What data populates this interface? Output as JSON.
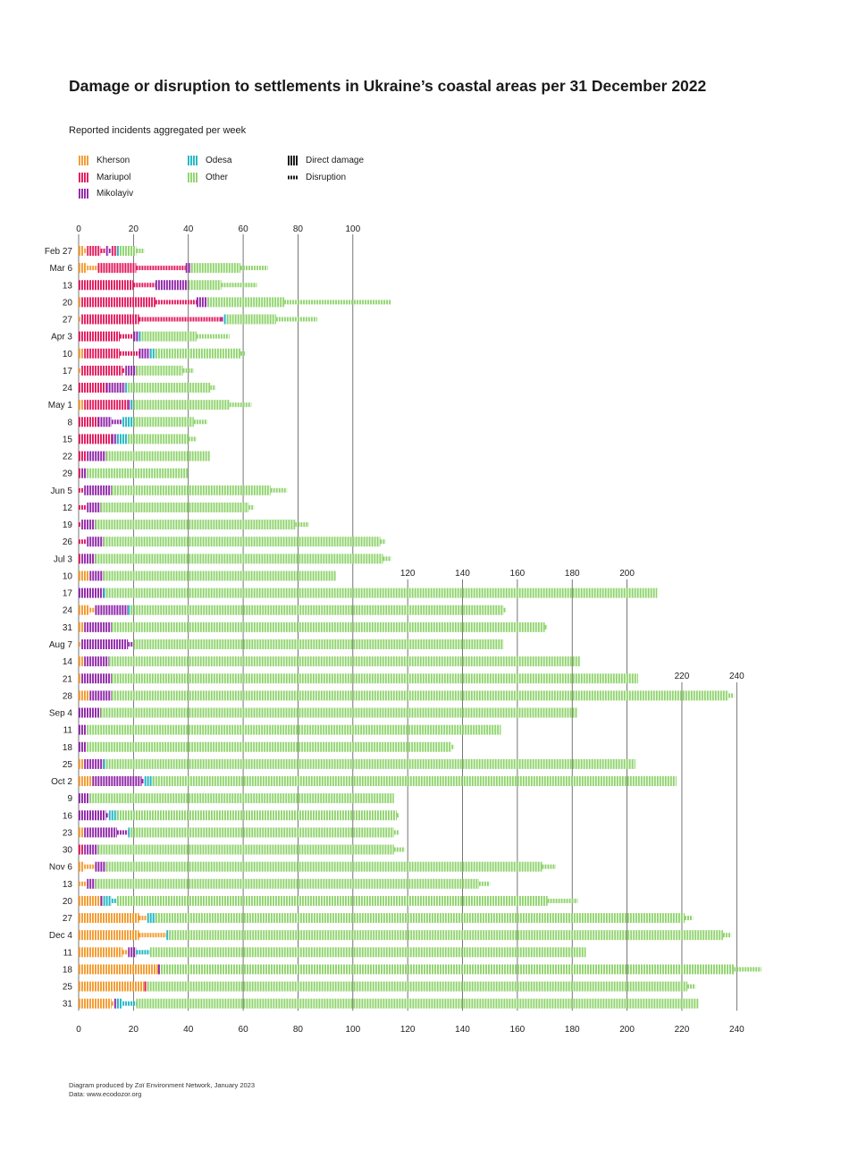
{
  "title": "Damage or disruption to settlements in Ukraine’s coastal areas per 31 December 2022",
  "subtitle": "Reported incidents aggregated per week",
  "legend": {
    "kherson": "Kherson",
    "mariupol": "Mariupol",
    "mikolayiv": "Mikolayiv",
    "odesa": "Odesa",
    "other": "Other",
    "direct": "Direct damage",
    "disruption": "Disruption"
  },
  "colors": {
    "kherson": "#f39a2d",
    "mariupol": "#e2185b",
    "mikolayiv": "#8e24a8",
    "odesa": "#1eb6c1",
    "other": "#8ed36b",
    "gridline": "#555555"
  },
  "footer": {
    "line1": "Diagram produced by Zoï Environment Network, January 2023",
    "line2": "Data: www.ecodozor.org"
  },
  "chart_data": {
    "type": "bar",
    "orientation": "horizontal",
    "stacked": true,
    "bar_style": "hatched vertical stripes; tall stripes = direct damage, short stripes = disruption",
    "xlim": [
      0,
      250
    ],
    "top_ticks": [
      0,
      20,
      40,
      60,
      80,
      100
    ],
    "mid_ticks": [
      120,
      140,
      160,
      180,
      200
    ],
    "late_ticks": [
      220,
      240
    ],
    "bottom_ticks": [
      0,
      20,
      40,
      60,
      80,
      100,
      120,
      140,
      160,
      180,
      200,
      220,
      240
    ],
    "categories": [
      "Feb 27",
      "Mar 6",
      "13",
      "20",
      "27",
      "Apr 3",
      "10",
      "17",
      "24",
      "May 1",
      "8",
      "15",
      "22",
      "29",
      "Jun 5",
      "12",
      "19",
      "26",
      "Jul 3",
      "10",
      "17",
      "24",
      "31",
      "Aug 7",
      "14",
      "21",
      "28",
      "Sep 4",
      "11",
      "18",
      "25",
      "Oct 2",
      "9",
      "16",
      "23",
      "30",
      "Nov 6",
      "13",
      "20",
      "27",
      "Dec 4",
      "11",
      "18",
      "25",
      "31"
    ],
    "segment_keys": [
      "city",
      "type",
      "value"
    ],
    "rows": [
      [
        [
          "kherson",
          "d",
          2
        ],
        [
          "kherson",
          "s",
          1
        ],
        [
          "mariupol",
          "d",
          5
        ],
        [
          "mariupol",
          "s",
          2
        ],
        [
          "mikolayiv",
          "d",
          1
        ],
        [
          "mikolayiv",
          "s",
          1
        ],
        [
          "mariupol",
          "d",
          2
        ],
        [
          "odesa",
          "d",
          1
        ],
        [
          "other",
          "d",
          6
        ],
        [
          "other",
          "s",
          3
        ]
      ],
      [
        [
          "kherson",
          "d",
          3
        ],
        [
          "kherson",
          "s",
          4
        ],
        [
          "mariupol",
          "d",
          14
        ],
        [
          "mariupol",
          "s",
          18
        ],
        [
          "mikolayiv",
          "d",
          2
        ],
        [
          "other",
          "d",
          18
        ],
        [
          "other",
          "s",
          10
        ]
      ],
      [
        [
          "mariupol",
          "d",
          20
        ],
        [
          "mariupol",
          "s",
          8
        ],
        [
          "mikolayiv",
          "d",
          12
        ],
        [
          "other",
          "d",
          12
        ],
        [
          "other",
          "s",
          13
        ]
      ],
      [
        [
          "kherson",
          "d",
          1
        ],
        [
          "mariupol",
          "d",
          27
        ],
        [
          "mariupol",
          "s",
          15
        ],
        [
          "mikolayiv",
          "d",
          4
        ],
        [
          "other",
          "d",
          28
        ],
        [
          "other",
          "s",
          39
        ]
      ],
      [
        [
          "kherson",
          "s",
          1
        ],
        [
          "mariupol",
          "d",
          21
        ],
        [
          "mariupol",
          "s",
          30
        ],
        [
          "mikolayiv",
          "s",
          1
        ],
        [
          "odesa",
          "d",
          1
        ],
        [
          "other",
          "d",
          18
        ],
        [
          "other",
          "s",
          15
        ]
      ],
      [
        [
          "mariupol",
          "d",
          15
        ],
        [
          "mariupol",
          "s",
          5
        ],
        [
          "mikolayiv",
          "d",
          2
        ],
        [
          "odesa",
          "d",
          1
        ],
        [
          "other",
          "d",
          20
        ],
        [
          "other",
          "s",
          12
        ]
      ],
      [
        [
          "kherson",
          "d",
          2
        ],
        [
          "mariupol",
          "d",
          13
        ],
        [
          "mariupol",
          "s",
          7
        ],
        [
          "mikolayiv",
          "d",
          4
        ],
        [
          "odesa",
          "d",
          2
        ],
        [
          "other",
          "d",
          31
        ],
        [
          "other",
          "s",
          2
        ]
      ],
      [
        [
          "kherson",
          "s",
          1
        ],
        [
          "mariupol",
          "d",
          15
        ],
        [
          "mariupol",
          "s",
          1
        ],
        [
          "mikolayiv",
          "d",
          4
        ],
        [
          "other",
          "d",
          17
        ],
        [
          "other",
          "s",
          4
        ]
      ],
      [
        [
          "mariupol",
          "d",
          10
        ],
        [
          "mikolayiv",
          "d",
          7
        ],
        [
          "odesa",
          "d",
          1
        ],
        [
          "other",
          "d",
          30
        ],
        [
          "other",
          "s",
          2
        ]
      ],
      [
        [
          "kherson",
          "d",
          2
        ],
        [
          "mariupol",
          "d",
          16
        ],
        [
          "mikolayiv",
          "d",
          1
        ],
        [
          "odesa",
          "d",
          1
        ],
        [
          "other",
          "d",
          35
        ],
        [
          "other",
          "s",
          8
        ]
      ],
      [
        [
          "mariupol",
          "d",
          7
        ],
        [
          "mikolayiv",
          "d",
          5
        ],
        [
          "mikolayiv",
          "s",
          4
        ],
        [
          "odesa",
          "d",
          4
        ],
        [
          "other",
          "d",
          22
        ],
        [
          "other",
          "s",
          5
        ]
      ],
      [
        [
          "mariupol",
          "d",
          12
        ],
        [
          "mikolayiv",
          "d",
          2
        ],
        [
          "odesa",
          "d",
          4
        ],
        [
          "other",
          "d",
          22
        ],
        [
          "other",
          "s",
          3
        ]
      ],
      [
        [
          "mariupol",
          "d",
          3
        ],
        [
          "mikolayiv",
          "d",
          7
        ],
        [
          "other",
          "d",
          38
        ]
      ],
      [
        [
          "mariupol",
          "d",
          1
        ],
        [
          "mikolayiv",
          "d",
          2
        ],
        [
          "other",
          "d",
          37
        ]
      ],
      [
        [
          "mariupol",
          "s",
          2
        ],
        [
          "mikolayiv",
          "d",
          10
        ],
        [
          "other",
          "d",
          58
        ],
        [
          "other",
          "s",
          6
        ]
      ],
      [
        [
          "mariupol",
          "s",
          3
        ],
        [
          "mikolayiv",
          "d",
          5
        ],
        [
          "other",
          "d",
          54
        ],
        [
          "other",
          "s",
          2
        ]
      ],
      [
        [
          "mariupol",
          "s",
          1
        ],
        [
          "mikolayiv",
          "d",
          5
        ],
        [
          "other",
          "d",
          73
        ],
        [
          "other",
          "s",
          5
        ]
      ],
      [
        [
          "mariupol",
          "s",
          3
        ],
        [
          "mikolayiv",
          "d",
          6
        ],
        [
          "other",
          "d",
          101
        ],
        [
          "other",
          "s",
          2
        ]
      ],
      [
        [
          "mariupol",
          "d",
          1
        ],
        [
          "mikolayiv",
          "d",
          5
        ],
        [
          "other",
          "d",
          105
        ],
        [
          "other",
          "s",
          3
        ]
      ],
      [
        [
          "kherson",
          "d",
          4
        ],
        [
          "mikolayiv",
          "d",
          5
        ],
        [
          "other",
          "d",
          85
        ]
      ],
      [
        [
          "mikolayiv",
          "d",
          9
        ],
        [
          "odesa",
          "d",
          1
        ],
        [
          "other",
          "d",
          201
        ]
      ],
      [
        [
          "kherson",
          "d",
          4
        ],
        [
          "kherson",
          "s",
          2
        ],
        [
          "mikolayiv",
          "d",
          12
        ],
        [
          "odesa",
          "d",
          1
        ],
        [
          "other",
          "d",
          136
        ],
        [
          "other",
          "s",
          1
        ]
      ],
      [
        [
          "kherson",
          "d",
          2
        ],
        [
          "mikolayiv",
          "d",
          10
        ],
        [
          "other",
          "d",
          158
        ],
        [
          "other",
          "s",
          1
        ]
      ],
      [
        [
          "kherson",
          "s",
          1
        ],
        [
          "mikolayiv",
          "d",
          17
        ],
        [
          "mikolayiv",
          "s",
          2
        ],
        [
          "other",
          "d",
          135
        ]
      ],
      [
        [
          "kherson",
          "d",
          2
        ],
        [
          "mikolayiv",
          "d",
          9
        ],
        [
          "other",
          "d",
          172
        ]
      ],
      [
        [
          "kherson",
          "d",
          1
        ],
        [
          "mikolayiv",
          "d",
          11
        ],
        [
          "other",
          "d",
          192
        ]
      ],
      [
        [
          "kherson",
          "d",
          4
        ],
        [
          "mikolayiv",
          "d",
          8
        ],
        [
          "other",
          "d",
          225
        ],
        [
          "other",
          "s",
          2
        ]
      ],
      [
        [
          "mikolayiv",
          "d",
          8
        ],
        [
          "other",
          "d",
          174
        ]
      ],
      [
        [
          "mikolayiv",
          "d",
          3
        ],
        [
          "other",
          "d",
          151
        ]
      ],
      [
        [
          "mikolayiv",
          "d",
          3
        ],
        [
          "other",
          "d",
          133
        ],
        [
          "other",
          "s",
          1
        ]
      ],
      [
        [
          "kherson",
          "d",
          2
        ],
        [
          "mikolayiv",
          "d",
          7
        ],
        [
          "odesa",
          "d",
          1
        ],
        [
          "other",
          "d",
          193
        ]
      ],
      [
        [
          "kherson",
          "d",
          5
        ],
        [
          "mikolayiv",
          "d",
          18
        ],
        [
          "mikolayiv",
          "s",
          1
        ],
        [
          "odesa",
          "d",
          3
        ],
        [
          "other",
          "d",
          191
        ]
      ],
      [
        [
          "mikolayiv",
          "d",
          4
        ],
        [
          "other",
          "d",
          111
        ]
      ],
      [
        [
          "mikolayiv",
          "d",
          10
        ],
        [
          "mikolayiv",
          "s",
          1
        ],
        [
          "odesa",
          "d",
          3
        ],
        [
          "other",
          "d",
          102
        ],
        [
          "other",
          "s",
          1
        ]
      ],
      [
        [
          "kherson",
          "d",
          2
        ],
        [
          "mikolayiv",
          "d",
          12
        ],
        [
          "mikolayiv",
          "s",
          4
        ],
        [
          "odesa",
          "d",
          1
        ],
        [
          "other",
          "d",
          96
        ],
        [
          "other",
          "s",
          2
        ]
      ],
      [
        [
          "mariupol",
          "d",
          2
        ],
        [
          "mikolayiv",
          "d",
          5
        ],
        [
          "other",
          "d",
          108
        ],
        [
          "other",
          "s",
          4
        ]
      ],
      [
        [
          "kherson",
          "d",
          2
        ],
        [
          "kherson",
          "s",
          4
        ],
        [
          "mikolayiv",
          "d",
          4
        ],
        [
          "other",
          "d",
          159
        ],
        [
          "other",
          "s",
          5
        ]
      ],
      [
        [
          "kherson",
          "s",
          3
        ],
        [
          "mikolayiv",
          "d",
          3
        ],
        [
          "other",
          "d",
          140
        ],
        [
          "other",
          "s",
          4
        ]
      ],
      [
        [
          "kherson",
          "d",
          8
        ],
        [
          "mikolayiv",
          "d",
          1
        ],
        [
          "odesa",
          "d",
          3
        ],
        [
          "odesa",
          "s",
          2
        ],
        [
          "other",
          "d",
          157
        ],
        [
          "other",
          "s",
          11
        ]
      ],
      [
        [
          "kherson",
          "d",
          22
        ],
        [
          "kherson",
          "s",
          3
        ],
        [
          "odesa",
          "d",
          3
        ],
        [
          "other",
          "d",
          193
        ],
        [
          "other",
          "s",
          3
        ]
      ],
      [
        [
          "kherson",
          "d",
          22
        ],
        [
          "kherson",
          "s",
          10
        ],
        [
          "odesa",
          "d",
          1
        ],
        [
          "other",
          "d",
          202
        ],
        [
          "other",
          "s",
          3
        ]
      ],
      [
        [
          "kherson",
          "d",
          16
        ],
        [
          "kherson",
          "s",
          2
        ],
        [
          "mikolayiv",
          "d",
          3
        ],
        [
          "odesa",
          "s",
          5
        ],
        [
          "other",
          "d",
          159
        ]
      ],
      [
        [
          "kherson",
          "d",
          29
        ],
        [
          "mikolayiv",
          "d",
          1
        ],
        [
          "other",
          "d",
          209
        ],
        [
          "other",
          "s",
          10
        ]
      ],
      [
        [
          "kherson",
          "d",
          24
        ],
        [
          "mariupol",
          "d",
          1
        ],
        [
          "other",
          "d",
          197
        ],
        [
          "other",
          "s",
          3
        ]
      ],
      [
        [
          "kherson",
          "d",
          12
        ],
        [
          "kherson",
          "s",
          1
        ],
        [
          "mikolayiv",
          "d",
          1
        ],
        [
          "odesa",
          "d",
          2
        ],
        [
          "odesa",
          "s",
          5
        ],
        [
          "other",
          "d",
          205
        ]
      ]
    ]
  }
}
